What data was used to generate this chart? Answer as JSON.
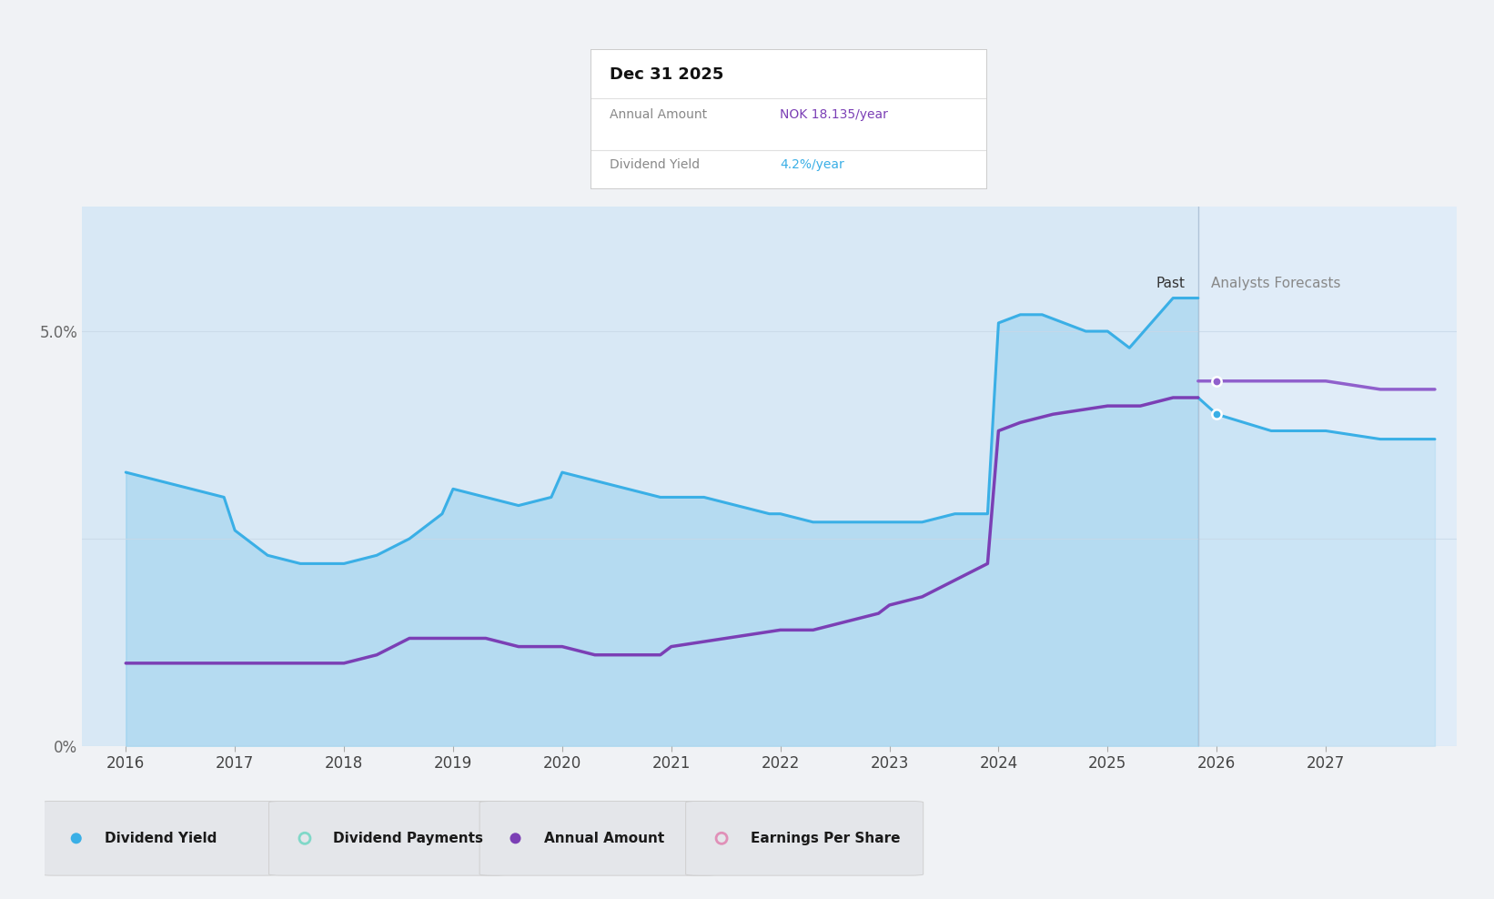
{
  "bg_color": "#f0f2f5",
  "plot_bg_color": "#d8e8f5",
  "forecast_bg_color": "#e0ecf8",
  "ylim_max": 0.065,
  "xmin": 2015.6,
  "xmax": 2028.2,
  "past_cutoff": 2025.83,
  "div_yield_x": [
    2016.0,
    2016.3,
    2016.6,
    2016.9,
    2017.0,
    2017.3,
    2017.6,
    2017.9,
    2018.0,
    2018.3,
    2018.6,
    2018.9,
    2019.0,
    2019.3,
    2019.6,
    2019.9,
    2020.0,
    2020.3,
    2020.6,
    2020.9,
    2021.0,
    2021.3,
    2021.6,
    2021.9,
    2022.0,
    2022.3,
    2022.6,
    2022.9,
    2023.0,
    2023.3,
    2023.6,
    2023.9,
    2024.0,
    2024.2,
    2024.4,
    2024.6,
    2024.8,
    2025.0,
    2025.2,
    2025.4,
    2025.6,
    2025.83
  ],
  "div_yield_y": [
    0.033,
    0.032,
    0.031,
    0.03,
    0.026,
    0.023,
    0.022,
    0.022,
    0.022,
    0.023,
    0.025,
    0.028,
    0.031,
    0.03,
    0.029,
    0.03,
    0.033,
    0.032,
    0.031,
    0.03,
    0.03,
    0.03,
    0.029,
    0.028,
    0.028,
    0.027,
    0.027,
    0.027,
    0.027,
    0.027,
    0.028,
    0.028,
    0.051,
    0.052,
    0.052,
    0.051,
    0.05,
    0.05,
    0.048,
    0.051,
    0.054,
    0.054
  ],
  "div_yield_forecast_x": [
    2025.83,
    2026.0,
    2026.5,
    2027.0,
    2027.5,
    2027.9,
    2028.0
  ],
  "div_yield_forecast_y": [
    0.042,
    0.04,
    0.038,
    0.038,
    0.037,
    0.037,
    0.037
  ],
  "annual_x": [
    2016.0,
    2016.5,
    2017.0,
    2017.5,
    2018.0,
    2018.3,
    2018.6,
    2019.0,
    2019.3,
    2019.6,
    2019.9,
    2020.0,
    2020.3,
    2020.6,
    2020.9,
    2021.0,
    2021.5,
    2022.0,
    2022.3,
    2022.6,
    2022.9,
    2023.0,
    2023.3,
    2023.6,
    2023.9,
    2024.0,
    2024.2,
    2024.5,
    2025.0,
    2025.3,
    2025.6,
    2025.83
  ],
  "annual_y": [
    0.01,
    0.01,
    0.01,
    0.01,
    0.01,
    0.011,
    0.013,
    0.013,
    0.013,
    0.012,
    0.012,
    0.012,
    0.011,
    0.011,
    0.011,
    0.012,
    0.013,
    0.014,
    0.014,
    0.015,
    0.016,
    0.017,
    0.018,
    0.02,
    0.022,
    0.038,
    0.039,
    0.04,
    0.041,
    0.041,
    0.042,
    0.042
  ],
  "annual_forecast_x": [
    2025.83,
    2026.0,
    2026.5,
    2027.0,
    2027.5,
    2027.9,
    2028.0
  ],
  "annual_forecast_y": [
    0.044,
    0.044,
    0.044,
    0.044,
    0.043,
    0.043,
    0.043
  ],
  "div_yield_color": "#3aafe6",
  "annual_color": "#7b3fb5",
  "annual_forecast_color": "#9060cc",
  "tooltip_title": "Dec 31 2025",
  "tooltip_annual_label": "Annual Amount",
  "tooltip_annual_value": "NOK 18.135/year",
  "tooltip_annual_color": "#7b3fb5",
  "tooltip_yield_label": "Dividend Yield",
  "tooltip_yield_value": "4.2%/year",
  "tooltip_yield_color": "#3aafe6",
  "past_label": "Past",
  "forecast_label": "Analysts Forecasts",
  "legend_items": [
    {
      "label": "Dividend Yield",
      "marker_color": "#3aafe6",
      "filled": true
    },
    {
      "label": "Dividend Payments",
      "marker_color": "#80d8c8",
      "filled": false
    },
    {
      "label": "Annual Amount",
      "marker_color": "#7b3fb5",
      "filled": true
    },
    {
      "label": "Earnings Per Share",
      "marker_color": "#e090b8",
      "filled": false
    }
  ],
  "xtick_years": [
    2016,
    2017,
    2018,
    2019,
    2020,
    2021,
    2022,
    2023,
    2024,
    2025,
    2026,
    2027
  ]
}
